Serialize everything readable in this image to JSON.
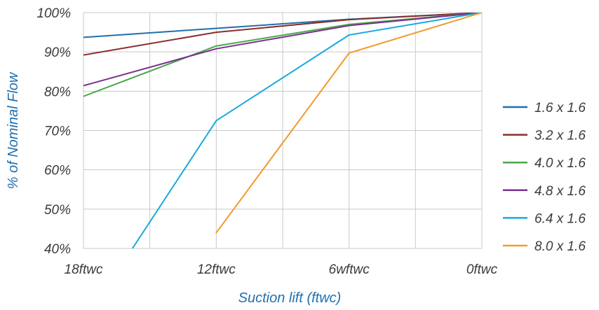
{
  "chart_data": {
    "type": "line",
    "title": "",
    "xlabel": "Suction lift (ftwc)",
    "ylabel": "% of Nominal Flow",
    "categories": [
      "18ftwc",
      "12ftwc",
      "6wftwc",
      "0ftwc"
    ],
    "y_ticks": [
      "40%",
      "50%",
      "60%",
      "70%",
      "80%",
      "90%",
      "100%"
    ],
    "ylim": [
      40,
      100
    ],
    "grid": true,
    "legend_position": "right",
    "series": [
      {
        "name": "1.6 x 1.6",
        "color": "#1f6fad",
        "values": [
          93.7,
          96.0,
          98.3,
          100
        ]
      },
      {
        "name": "3.2 x 1.6",
        "color": "#8b2e2e",
        "values": [
          89.2,
          95.0,
          98.2,
          100
        ]
      },
      {
        "name": "4.0 x 1.6",
        "color": "#4aa84a",
        "values": [
          78.7,
          91.5,
          97.0,
          100
        ]
      },
      {
        "name": "4.8 x 1.6",
        "color": "#7b2f8e",
        "values": [
          81.4,
          90.8,
          96.7,
          100
        ]
      },
      {
        "name": "6.4 x 1.6",
        "color": "#1aa9de",
        "values": [
          21.0,
          72.5,
          94.3,
          100
        ]
      },
      {
        "name": "8.0 x 1.6",
        "color": "#f19a2a",
        "values": [
          null,
          44.0,
          89.7,
          100
        ]
      }
    ]
  }
}
